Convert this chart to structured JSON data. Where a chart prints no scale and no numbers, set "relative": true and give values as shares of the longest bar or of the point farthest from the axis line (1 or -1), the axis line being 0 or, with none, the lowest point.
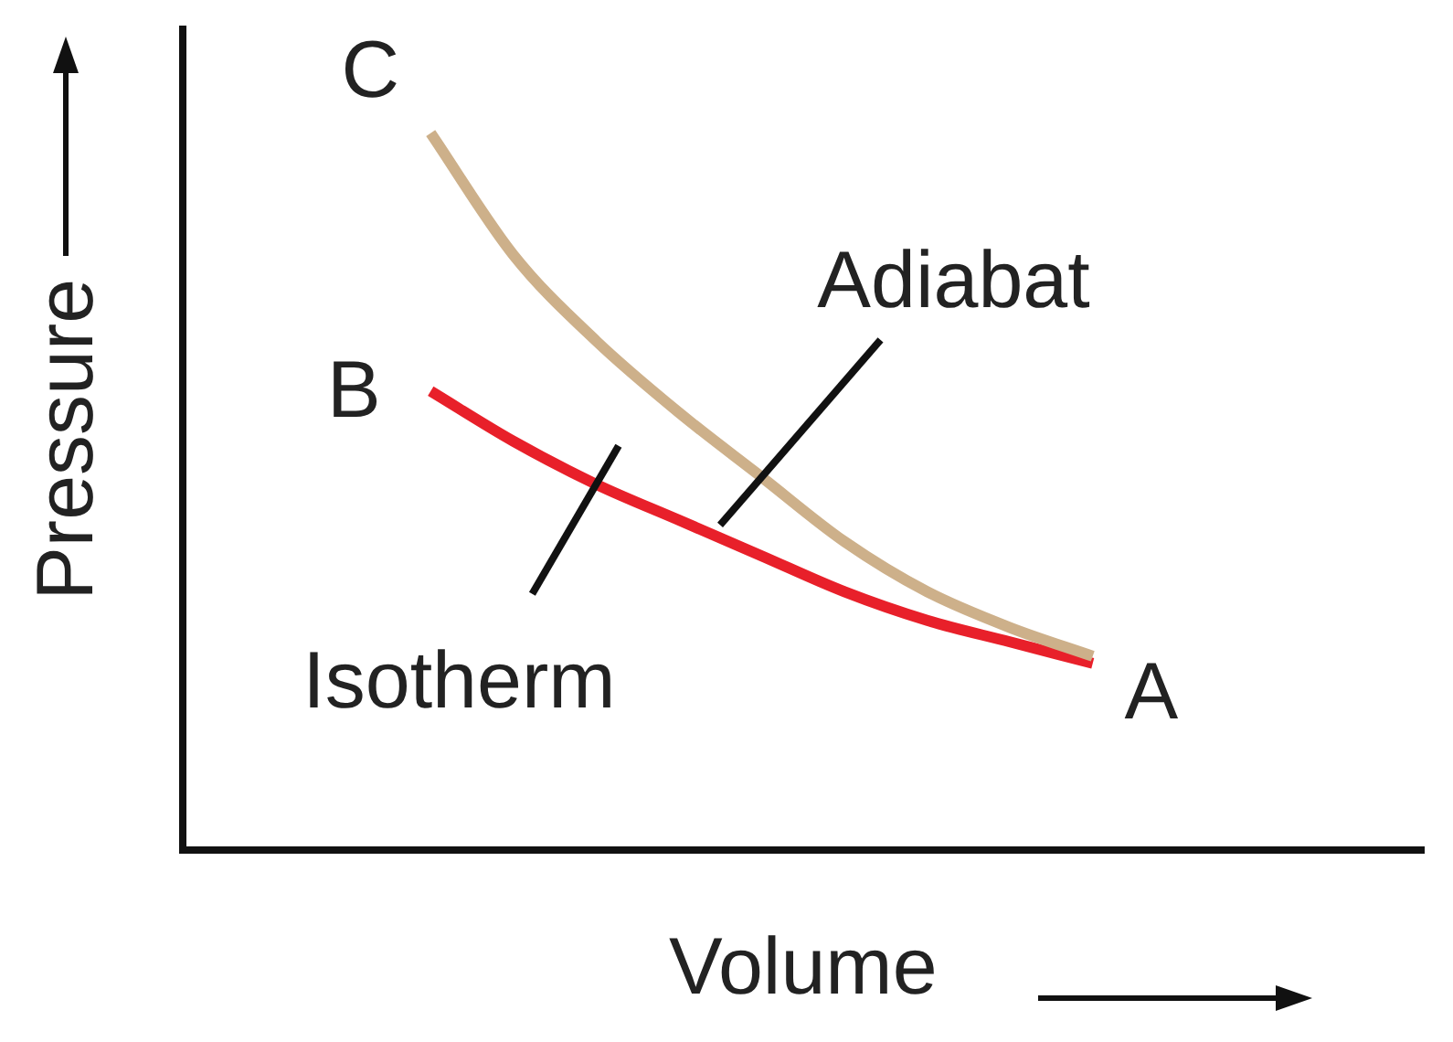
{
  "chart_data": {
    "type": "line",
    "relative": true,
    "xlabel": "Volume",
    "ylabel": "Pressure",
    "categories": [
      null,
      null,
      null,
      null,
      null,
      null,
      null,
      null,
      null,
      null,
      null,
      null,
      null,
      null,
      null,
      null
    ],
    "series": [
      {
        "name": "Adiabat",
        "color": "#cdb08a",
        "values": [
          null,
          null,
          null,
          1,
          0.83,
          0.71,
          0.61,
          0.52,
          0.43,
          0.36,
          0.31,
          0.27,
          null,
          null,
          null,
          null
        ]
      },
      {
        "name": "Isotherm",
        "color": "#e8202a",
        "values": [
          null,
          null,
          null,
          0.64,
          0.57,
          0.51,
          0.46,
          0.41,
          0.36,
          0.32,
          0.29,
          0.26,
          null,
          null,
          null,
          null
        ]
      }
    ],
    "annotations": [
      "C",
      "B",
      "A"
    ],
    "grid": false,
    "legend": false,
    "marker": "none",
    "line_style": "solid"
  }
}
